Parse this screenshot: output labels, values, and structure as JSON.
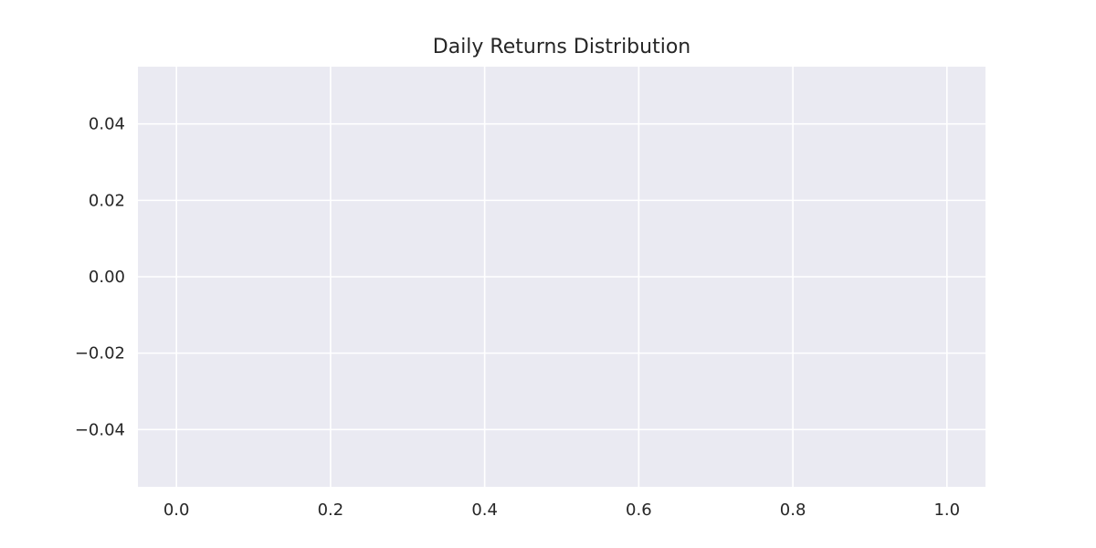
{
  "chart_data": {
    "type": "bar",
    "title": "Daily Returns Distribution",
    "xlabel": "",
    "ylabel": "",
    "xlim": [
      -0.05,
      1.05
    ],
    "ylim": [
      -0.055,
      0.055
    ],
    "x_ticks": [
      0.0,
      0.2,
      0.4,
      0.6,
      0.8,
      1.0
    ],
    "x_tick_labels": [
      "0.0",
      "0.2",
      "0.4",
      "0.6",
      "0.8",
      "1.0"
    ],
    "y_ticks": [
      0.04,
      0.02,
      0.0,
      -0.02,
      -0.04
    ],
    "y_tick_labels": [
      "0.04",
      "0.02",
      "0.00",
      "−0.02",
      "−0.04"
    ],
    "grid": true,
    "series": [],
    "colors": {
      "plot_background": "#eaeaf2",
      "grid": "#ffffff",
      "text": "#262626"
    }
  }
}
